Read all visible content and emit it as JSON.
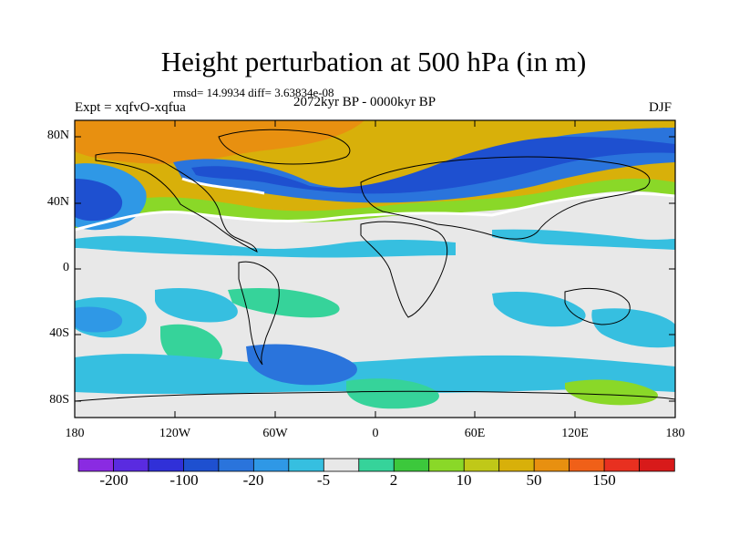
{
  "title": "Height perturbation at 500 hPa (in m)",
  "stats": "rmsd= 14.9934 diff= 3.63834e-08",
  "experiment": "Expt = xqfvO-xqfua",
  "period": "2072kyr BP - 0000kyr BP",
  "season": "DJF",
  "lat_labels": [
    "80N",
    "40N",
    "0",
    "40S",
    "80S"
  ],
  "lon_labels": [
    "180",
    "120W",
    "60W",
    "0",
    "60E",
    "120E",
    "180"
  ],
  "colorbar": {
    "labels": [
      "-200",
      "-100",
      "-20",
      "-5",
      "2",
      "10",
      "50",
      "150"
    ],
    "colors": [
      "#8a2be2",
      "#5a2be0",
      "#3030d8",
      "#1e50d0",
      "#2a74dc",
      "#2f98e6",
      "#36bfe0",
      "#e8e8e8",
      "#36d39a",
      "#3cc83c",
      "#8ad828",
      "#c0c818",
      "#d8b00a",
      "#e89010",
      "#f06018",
      "#e83020",
      "#d81a1a"
    ]
  },
  "map_colors": {
    "ocean_blank": "#e8e8e8",
    "dark_blue": "#1e50d0",
    "mid_blue": "#2a74dc",
    "light_blue": "#36bfe0",
    "teal": "#2f98e6",
    "green": "#36d39a",
    "lime": "#8ad828",
    "yellow": "#c0c818",
    "gold": "#d8b00a",
    "orange": "#e89010"
  }
}
